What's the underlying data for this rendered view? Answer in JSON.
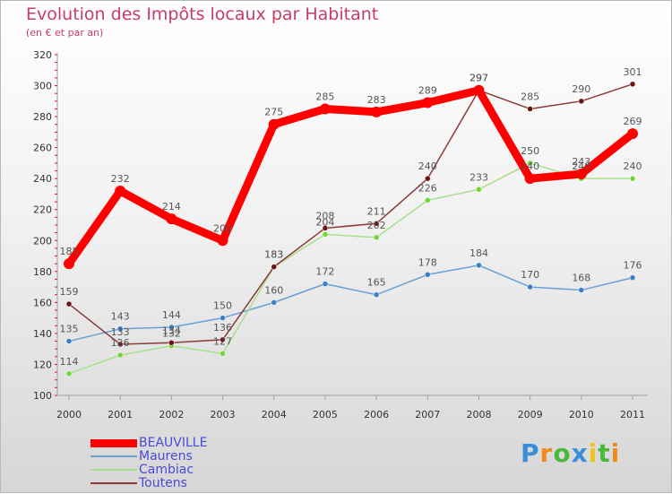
{
  "title": "Evolution des Impôts locaux par Habitant",
  "subtitle": "(en € et par an)",
  "chart_data": {
    "type": "line",
    "title": "Evolution des Impôts locaux par Habitant",
    "subtitle": "(en € et par an)",
    "xlabel": "",
    "ylabel": "",
    "x": [
      "2000",
      "2001",
      "2002",
      "2003",
      "2004",
      "2005",
      "2006",
      "2007",
      "2008",
      "2009",
      "2010",
      "2011"
    ],
    "ylim": [
      100,
      320
    ],
    "yticks": [
      100,
      120,
      140,
      160,
      180,
      200,
      220,
      240,
      260,
      280,
      300,
      320
    ],
    "grid": "none",
    "legend": "bottom-left",
    "series": [
      {
        "name": "BEAUVILLE",
        "color": "#ff0000",
        "line_width": 9,
        "marker_color": "#ff0000",
        "values": [
          185,
          232,
          214,
          200,
          275,
          285,
          283,
          289,
          297,
          240,
          243,
          269
        ]
      },
      {
        "name": "Maurens",
        "color": "#6a9fd4",
        "line_width": 1.5,
        "marker_color": "#3b7fc8",
        "values": [
          135,
          143,
          144,
          150,
          160,
          172,
          165,
          178,
          184,
          170,
          168,
          176
        ]
      },
      {
        "name": "Cambiac",
        "color": "#a8e08a",
        "line_width": 1.5,
        "marker_color": "#77d23a",
        "values": [
          114,
          126,
          132,
          127,
          183,
          204,
          202,
          226,
          233,
          250,
          240,
          240
        ]
      },
      {
        "name": "Toutens",
        "color": "#8a3a3a",
        "line_width": 1.5,
        "marker_color": "#6b1414",
        "values": [
          159,
          133,
          134,
          136,
          183,
          208,
          211,
          240,
          297,
          285,
          290,
          301
        ]
      }
    ]
  },
  "logo": {
    "letters": [
      "P",
      "r",
      "o",
      "x",
      "i",
      "t",
      "i"
    ],
    "colors": [
      "#3a8ed8",
      "#f08a1a",
      "#49b83b",
      "#3a8ed8",
      "#f0c21a",
      "#49b83b",
      "#f08a1a"
    ]
  }
}
